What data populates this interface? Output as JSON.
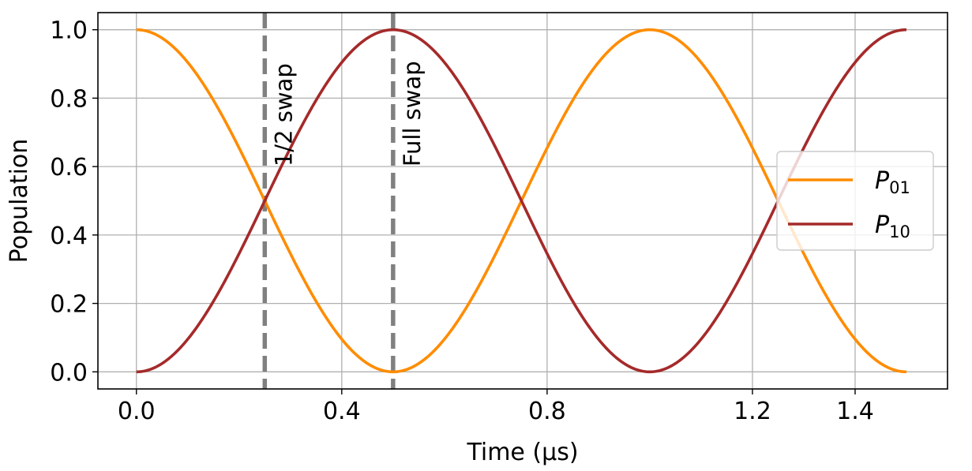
{
  "chart_data": {
    "type": "line",
    "xlabel": "Time (µs)",
    "ylabel": "Population",
    "xlim": [
      -0.075,
      1.58
    ],
    "ylim": [
      -0.05,
      1.05
    ],
    "xticks": [
      0.0,
      0.4,
      0.8,
      1.2,
      1.4
    ],
    "xtick_labels": [
      "0.0",
      "0.4",
      "0.8",
      "1.2",
      "1.4"
    ],
    "yticks": [
      0.0,
      0.2,
      0.4,
      0.6,
      0.8,
      1.0
    ],
    "ytick_labels": [
      "0.0",
      "0.2",
      "0.4",
      "0.6",
      "0.8",
      "1.0"
    ],
    "grid": true,
    "legend_position": "center-right",
    "period_us": 1.0,
    "t_end_us": 1.5,
    "series": [
      {
        "name": "P01",
        "legend_main": "P",
        "legend_sub": "01",
        "color": "#ff8c00",
        "function": "cos^2(pi*t/period)",
        "x": [
          0.0,
          0.125,
          0.25,
          0.375,
          0.5,
          0.625,
          0.75,
          0.875,
          1.0,
          1.125,
          1.25,
          1.375,
          1.5
        ],
        "y": [
          1.0,
          0.854,
          0.5,
          0.146,
          0.0,
          0.146,
          0.5,
          0.854,
          1.0,
          0.854,
          0.5,
          0.146,
          0.0
        ]
      },
      {
        "name": "P10",
        "legend_main": "P",
        "legend_sub": "10",
        "color": "#a52a2a",
        "function": "sin^2(pi*t/period)",
        "x": [
          0.0,
          0.125,
          0.25,
          0.375,
          0.5,
          0.625,
          0.75,
          0.875,
          1.0,
          1.125,
          1.25,
          1.375,
          1.5
        ],
        "y": [
          0.0,
          0.146,
          0.5,
          0.854,
          1.0,
          0.854,
          0.5,
          0.146,
          0.0,
          0.146,
          0.5,
          0.854,
          1.0
        ]
      }
    ],
    "vlines": [
      {
        "x": 0.25,
        "label": "1/2 swap",
        "color": "#808080"
      },
      {
        "x": 0.5,
        "label": "Full swap",
        "color": "#808080"
      }
    ]
  }
}
